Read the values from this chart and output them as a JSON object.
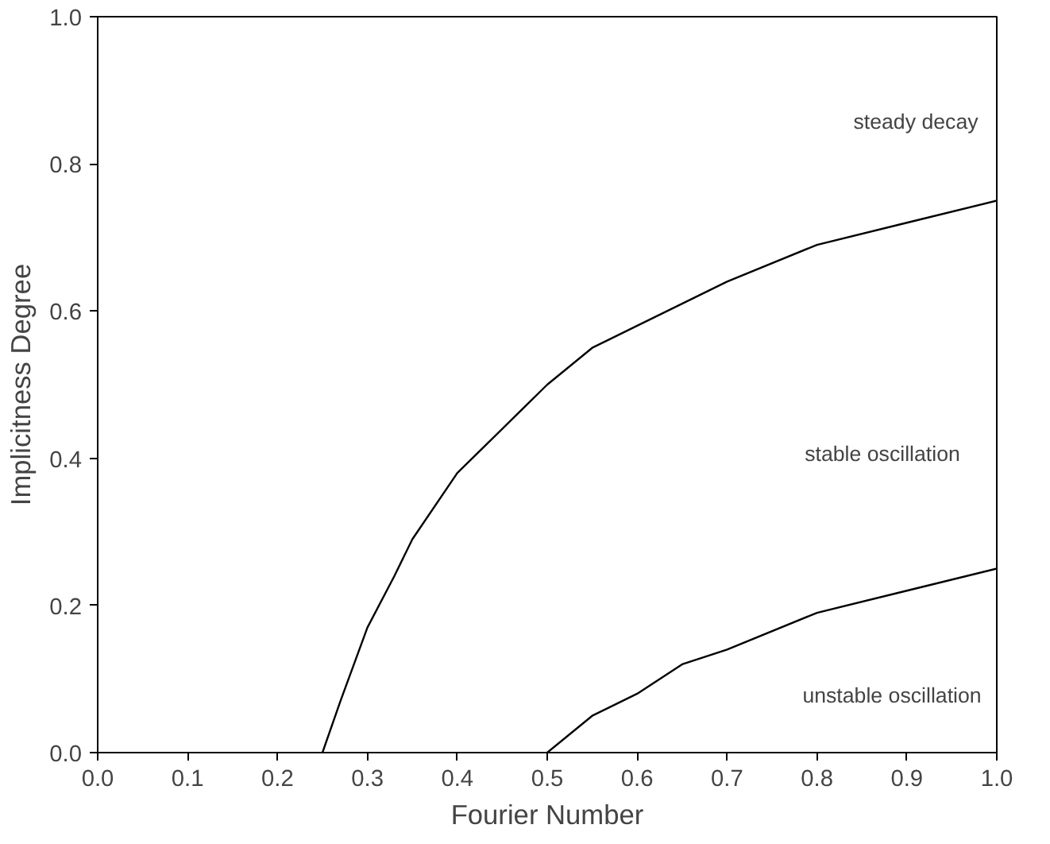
{
  "chart_data": {
    "type": "line",
    "xlabel": "Fourier Number",
    "ylabel": "Implicitness Degree",
    "series": [
      {
        "color": "#000000",
        "x": [
          0.25,
          0.27,
          0.3,
          0.33,
          0.35,
          0.4,
          0.45,
          0.5,
          0.55,
          0.6,
          0.7,
          0.8,
          0.9,
          1.0
        ],
        "values": [
          0.0,
          0.07,
          0.17,
          0.24,
          0.29,
          0.38,
          0.44,
          0.5,
          0.55,
          0.58,
          0.64,
          0.69,
          0.72,
          0.75
        ]
      },
      {
        "color": "#000000",
        "x": [
          0.5,
          0.55,
          0.6,
          0.65,
          0.7,
          0.8,
          0.9,
          1.0
        ],
        "values": [
          0.0,
          0.05,
          0.08,
          0.12,
          0.14,
          0.19,
          0.22,
          0.25
        ]
      }
    ],
    "xlim": [
      0.0,
      1.0
    ],
    "ylim": [
      0.0,
      1.0
    ],
    "xticks": [
      {
        "value": 0.0,
        "label": "0.0"
      },
      0.1,
      0.2,
      0.3,
      0.4,
      0.5,
      0.6,
      0.7,
      0.8,
      0.9,
      {
        "value": 1.0,
        "label": "1.0"
      }
    ],
    "yticks": [
      {
        "value": 0.0,
        "label": "0.0"
      },
      0.2,
      0.4,
      0.6,
      0.8,
      {
        "value": 1.0,
        "label": "1.0"
      }
    ],
    "annotations": [
      "steady decay",
      "stable oscillation",
      "unstable oscillation"
    ],
    "grid": false,
    "marker": "none",
    "line_style": "solid"
  }
}
